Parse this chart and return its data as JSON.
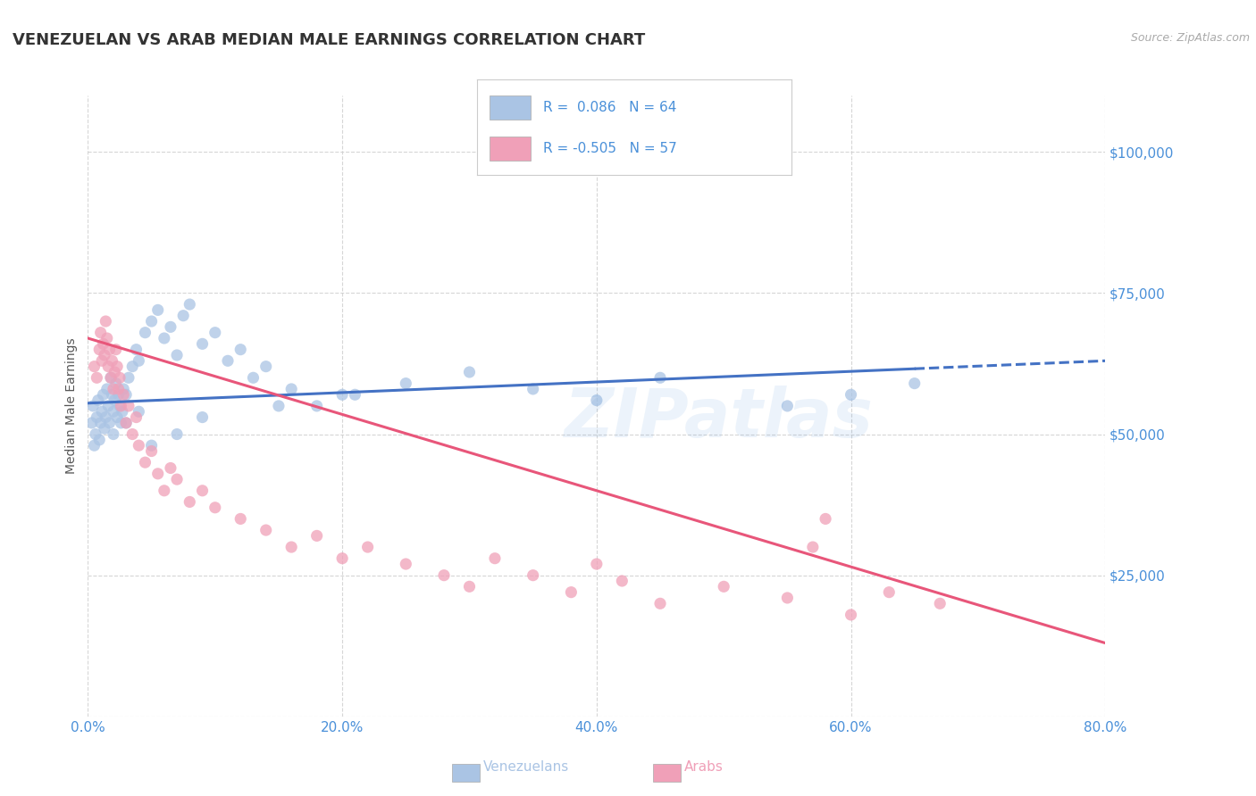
{
  "title": "VENEZUELAN VS ARAB MEDIAN MALE EARNINGS CORRELATION CHART",
  "source": "Source: ZipAtlas.com",
  "ylabel": "Median Male Earnings",
  "xlim": [
    0.0,
    80.0
  ],
  "ylim": [
    0,
    110000
  ],
  "yticks": [
    0,
    25000,
    50000,
    75000,
    100000
  ],
  "ytick_labels": [
    "",
    "$25,000",
    "$50,000",
    "$75,000",
    "$100,000"
  ],
  "xticks": [
    0.0,
    20.0,
    40.0,
    60.0,
    80.0
  ],
  "xtick_labels": [
    "0.0%",
    "20.0%",
    "40.0%",
    "60.0%",
    "80.0%"
  ],
  "venezuelan_R": 0.086,
  "venezuelan_N": 64,
  "arab_R": -0.505,
  "arab_N": 57,
  "venezuelan_color": "#aac4e4",
  "arab_color": "#f0a0b8",
  "venezuelan_line_color": "#4472c4",
  "arab_line_color": "#e8567a",
  "background_color": "#ffffff",
  "grid_color": "#cccccc",
  "title_color": "#333333",
  "axis_label_color": "#555555",
  "tick_label_color": "#4a90d9",
  "legend_R_color": "#4a90d9",
  "watermark": "ZIPatlas",
  "venezuelan_x": [
    0.3,
    0.4,
    0.5,
    0.6,
    0.7,
    0.8,
    0.9,
    1.0,
    1.1,
    1.2,
    1.3,
    1.4,
    1.5,
    1.6,
    1.7,
    1.8,
    1.9,
    2.0,
    2.1,
    2.2,
    2.3,
    2.4,
    2.5,
    2.6,
    2.7,
    2.8,
    3.0,
    3.2,
    3.5,
    3.8,
    4.0,
    4.5,
    5.0,
    5.5,
    6.0,
    6.5,
    7.0,
    7.5,
    8.0,
    9.0,
    10.0,
    11.0,
    12.0,
    13.0,
    14.0,
    16.0,
    18.0,
    21.0,
    25.0,
    30.0,
    35.0,
    40.0,
    45.0,
    55.0,
    60.0,
    65.0,
    2.0,
    3.0,
    4.0,
    5.0,
    7.0,
    9.0,
    15.0,
    20.0
  ],
  "venezuelan_y": [
    52000,
    55000,
    48000,
    50000,
    53000,
    56000,
    49000,
    52000,
    54000,
    57000,
    51000,
    53000,
    58000,
    55000,
    52000,
    60000,
    57000,
    54000,
    56000,
    59000,
    53000,
    57000,
    55000,
    52000,
    54000,
    58000,
    57000,
    60000,
    62000,
    65000,
    63000,
    68000,
    70000,
    72000,
    67000,
    69000,
    64000,
    71000,
    73000,
    66000,
    68000,
    63000,
    65000,
    60000,
    62000,
    58000,
    55000,
    57000,
    59000,
    61000,
    58000,
    56000,
    60000,
    55000,
    57000,
    59000,
    50000,
    52000,
    54000,
    48000,
    50000,
    53000,
    55000,
    57000
  ],
  "arab_x": [
    0.5,
    0.7,
    0.9,
    1.0,
    1.1,
    1.2,
    1.3,
    1.4,
    1.5,
    1.6,
    1.7,
    1.8,
    1.9,
    2.0,
    2.1,
    2.2,
    2.3,
    2.4,
    2.5,
    2.6,
    2.8,
    3.0,
    3.2,
    3.5,
    3.8,
    4.0,
    4.5,
    5.0,
    5.5,
    6.0,
    6.5,
    7.0,
    8.0,
    9.0,
    10.0,
    12.0,
    14.0,
    16.0,
    18.0,
    20.0,
    22.0,
    25.0,
    28.0,
    30.0,
    32.0,
    35.0,
    38.0,
    40.0,
    42.0,
    45.0,
    50.0,
    55.0,
    58.0,
    60.0,
    63.0,
    67.0,
    57.0
  ],
  "arab_y": [
    62000,
    60000,
    65000,
    68000,
    63000,
    66000,
    64000,
    70000,
    67000,
    62000,
    65000,
    60000,
    63000,
    58000,
    61000,
    65000,
    62000,
    58000,
    60000,
    55000,
    57000,
    52000,
    55000,
    50000,
    53000,
    48000,
    45000,
    47000,
    43000,
    40000,
    44000,
    42000,
    38000,
    40000,
    37000,
    35000,
    33000,
    30000,
    32000,
    28000,
    30000,
    27000,
    25000,
    23000,
    28000,
    25000,
    22000,
    27000,
    24000,
    20000,
    23000,
    21000,
    35000,
    18000,
    22000,
    20000,
    30000
  ]
}
